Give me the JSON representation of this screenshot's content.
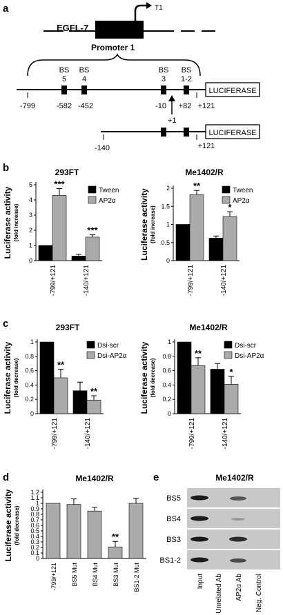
{
  "figure": {
    "panel_a": {
      "label": "a",
      "gene": "EGFL-7",
      "tss": "T1",
      "promoter": "Promoter 1",
      "binding_sites": [
        "BS",
        "BS",
        "BS",
        "BS"
      ],
      "site_numbers": [
        "5",
        "4",
        "3",
        "1-2"
      ],
      "reporter": "LUCIFERASE",
      "positions_long": [
        "-799",
        "-582",
        "-452",
        "-10",
        "+82",
        "+121"
      ],
      "plus_one": "+1",
      "positions_short": [
        "-140",
        "+121"
      ]
    },
    "panel_b": {
      "label": "b"
    },
    "panel_c": {
      "label": "c"
    },
    "panel_d": {
      "label": "d"
    },
    "panel_e": {
      "label": "e",
      "title": "Me1402/R",
      "rows": [
        "BS5",
        "BS4",
        "BS3",
        "BS1-2"
      ],
      "lanes": [
        "Input",
        "Unrelated Ab",
        "AP2α Ab",
        "Neg. Control"
      ]
    }
  },
  "chart_data": [
    {
      "id": "b1",
      "type": "bar",
      "title": "293FT",
      "ylabel": "Luciferase activity",
      "ysublabel": "(fold increase)",
      "categories": [
        "-799/+121",
        "-140/+121"
      ],
      "ylim": [
        0,
        5
      ],
      "yticks": [
        0,
        1,
        2,
        3,
        4,
        5
      ],
      "tick_labels": [
        "0",
        "1",
        "2",
        "3",
        "4",
        "5"
      ],
      "series": [
        {
          "name": "Tween",
          "color": "#000000",
          "values": [
            1.0,
            0.3
          ],
          "errors": [
            0,
            0.12
          ]
        },
        {
          "name": "AP2α",
          "color": "#aaaaaa",
          "values": [
            4.3,
            1.55
          ],
          "errors": [
            0.45,
            0.15
          ]
        }
      ],
      "annotations": [
        {
          "series": 1,
          "cat": 0,
          "text": "***"
        },
        {
          "series": 1,
          "cat": 1,
          "text": "***"
        }
      ]
    },
    {
      "id": "b2",
      "type": "bar",
      "title": "Me1402/R",
      "ylabel": "Luciferase activity",
      "ysublabel": "(fold increase)",
      "categories": [
        "-799/+121",
        "-140/+121"
      ],
      "ylim": [
        0,
        2
      ],
      "yticks": [
        0,
        0.5,
        1,
        1.5,
        2
      ],
      "tick_labels": [
        "0",
        "0.5",
        "1",
        "1.5",
        "2"
      ],
      "series": [
        {
          "name": "Tween",
          "color": "#000000",
          "values": [
            1.0,
            0.62
          ],
          "errors": [
            0,
            0.06
          ]
        },
        {
          "name": "AP2α",
          "color": "#aaaaaa",
          "values": [
            1.82,
            1.22
          ],
          "errors": [
            0.12,
            0.13
          ]
        }
      ],
      "annotations": [
        {
          "series": 1,
          "cat": 0,
          "text": "**"
        },
        {
          "series": 1,
          "cat": 1,
          "text": "*"
        }
      ]
    },
    {
      "id": "c1",
      "type": "bar",
      "title": "293FT",
      "ylabel": "Luciferase activity",
      "ysublabel": "(fold decrease)",
      "categories": [
        "-799/+121",
        "-140/+121"
      ],
      "ylim": [
        0,
        1
      ],
      "yticks": [
        0,
        0.2,
        0.4,
        0.6,
        0.8,
        1
      ],
      "tick_labels": [
        "0",
        "0.2",
        "0.4",
        "0.6",
        "0.8",
        "1"
      ],
      "series": [
        {
          "name": "Dsi-scr",
          "color": "#000000",
          "values": [
            1.0,
            0.32
          ],
          "errors": [
            0,
            0.12
          ]
        },
        {
          "name": "Dsi-AP2α",
          "color": "#aaaaaa",
          "values": [
            0.5,
            0.19
          ],
          "errors": [
            0.12,
            0.06
          ]
        }
      ],
      "annotations": [
        {
          "series": 1,
          "cat": 0,
          "text": "**"
        },
        {
          "series": 1,
          "cat": 1,
          "text": "**"
        }
      ]
    },
    {
      "id": "c2",
      "type": "bar",
      "title": "Me1402/R",
      "ylabel": "Luciferase activity",
      "ysublabel": "(fold decrease)",
      "categories": [
        "-799/+121",
        "-140/+121"
      ],
      "ylim": [
        0,
        1
      ],
      "yticks": [
        0,
        0.2,
        0.4,
        0.6,
        0.8,
        1
      ],
      "tick_labels": [
        "0",
        "0.2",
        "0.4",
        "0.6",
        "0.8",
        "1"
      ],
      "series": [
        {
          "name": "Dsi-scr",
          "color": "#000000",
          "values": [
            1.0,
            0.62
          ],
          "errors": [
            0,
            0.08
          ]
        },
        {
          "name": "Dsi-AP2α",
          "color": "#aaaaaa",
          "values": [
            0.67,
            0.41
          ],
          "errors": [
            0.11,
            0.11
          ]
        }
      ],
      "annotations": [
        {
          "series": 1,
          "cat": 0,
          "text": "**"
        },
        {
          "series": 1,
          "cat": 1,
          "text": "*"
        }
      ]
    },
    {
      "id": "d",
      "type": "bar",
      "title": "Me1402/R",
      "ylabel": "Luciferase activity",
      "ysublabel": "(fold decrease)",
      "categories": [
        "-799/+121",
        "BS5 Mut",
        "BS4 Mut",
        "BS3 Mut",
        "BS1-2 Mut"
      ],
      "ylim": [
        0,
        1.2
      ],
      "yticks": [
        0,
        0.1,
        0.2,
        0.3,
        0.4,
        0.5,
        0.6,
        0.7,
        0.8,
        0.9,
        1,
        1.1,
        1.2
      ],
      "tick_labels": [
        "0",
        "0.1",
        "0.2",
        "0.3",
        "0.4",
        "0.5",
        "0.6",
        "0.7",
        "0.8",
        "0.9",
        "1",
        "1.1",
        "1.2"
      ],
      "series": [
        {
          "name": "",
          "color": "#aaaaaa",
          "values": [
            1.0,
            0.98,
            0.86,
            0.21,
            1.0
          ],
          "errors": [
            0,
            0.1,
            0.07,
            0.1,
            0.09
          ]
        }
      ],
      "annotations": [
        {
          "series": 0,
          "cat": 3,
          "text": "**"
        }
      ]
    }
  ]
}
